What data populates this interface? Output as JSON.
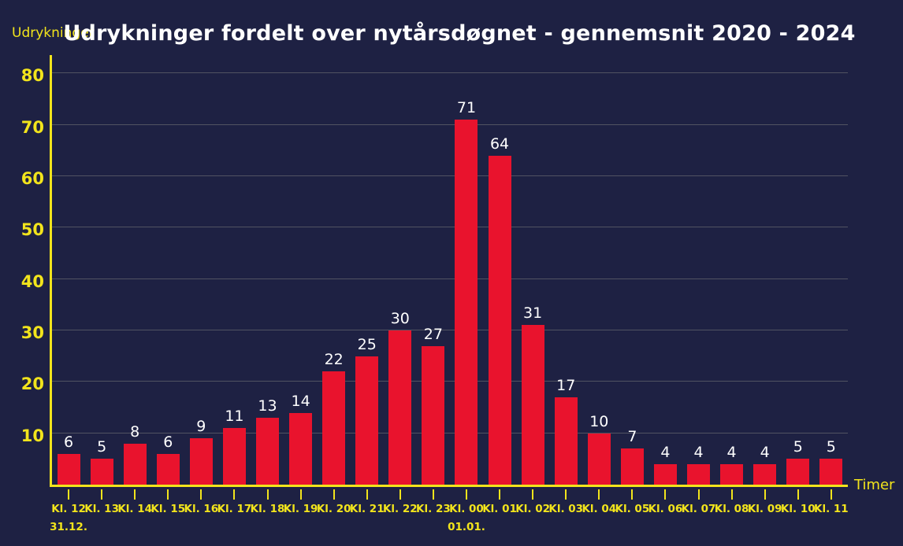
{
  "chart_data": {
    "type": "bar",
    "title": "Udrykninger fordelt over nytårsdøgnet - gennemsnit 2020 - 2024",
    "ylabel": "Udrykninger",
    "xlabel": "Timer",
    "categories": [
      "Kl. 12",
      "Kl. 13",
      "Kl. 14",
      "Kl. 15",
      "Kl. 16",
      "Kl. 17",
      "Kl. 18",
      "Kl. 19",
      "Kl. 20",
      "Kl. 21",
      "Kl. 22",
      "Kl. 23",
      "Kl. 00",
      "Kl. 01",
      "Kl. 02",
      "Kl. 03",
      "Kl. 04",
      "Kl. 05",
      "Kl. 06",
      "Kl. 07",
      "Kl. 08",
      "Kl. 09",
      "Kl. 10",
      "Kl. 11"
    ],
    "date_sublabels": [
      "31.12.",
      "",
      "",
      "",
      "",
      "",
      "",
      "",
      "",
      "",
      "",
      "",
      "01.01.",
      "",
      "",
      "",
      "",
      "",
      "",
      "",
      "",
      "",
      "",
      ""
    ],
    "values": [
      6,
      5,
      8,
      6,
      9,
      11,
      13,
      14,
      22,
      25,
      30,
      27,
      71,
      64,
      31,
      17,
      10,
      7,
      4,
      4,
      4,
      4,
      5,
      5
    ],
    "yticks": [
      10,
      20,
      30,
      40,
      50,
      60,
      70,
      80
    ],
    "ylim": [
      0,
      84
    ],
    "grid": true,
    "legend": null,
    "colors": {
      "background": "#1e2143",
      "bar": "#e9132d",
      "axis_and_labels": "#f2e41c",
      "gridline": "rgba(190,190,165,0.32)",
      "value_labels": "#ffffff",
      "title": "#ffffff"
    }
  }
}
